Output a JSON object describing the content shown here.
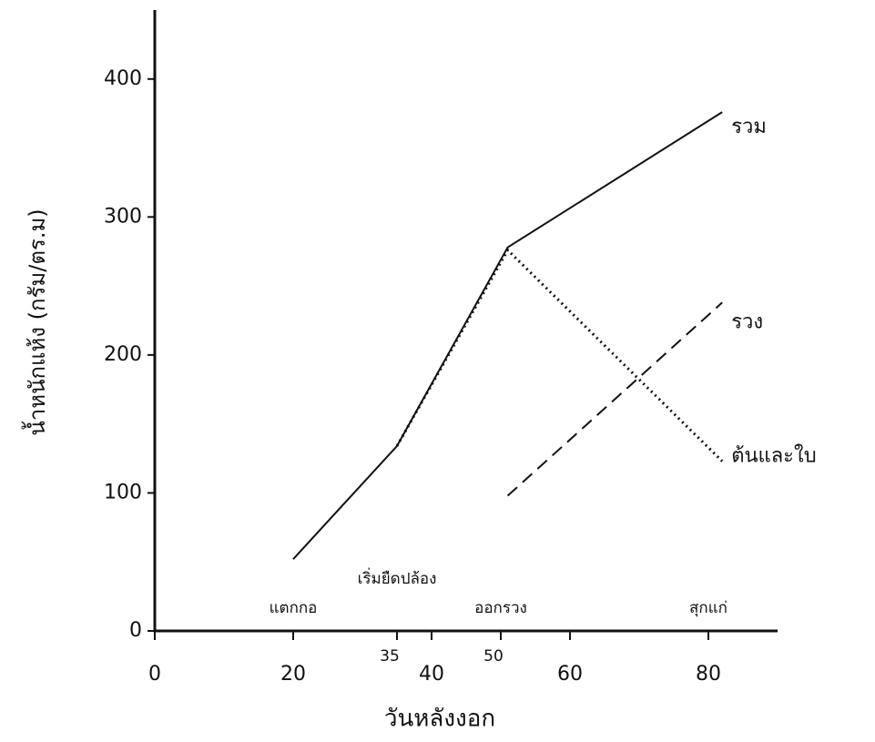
{
  "chart_data": {
    "type": "line",
    "x_label": "วันหลังงอก",
    "y_label": "น้ำหนักแห้ง (กรัม/ตร.ม)",
    "xlim": [
      0,
      90
    ],
    "ylim": [
      0,
      450
    ],
    "xticks": [
      0,
      20,
      40,
      60,
      80
    ],
    "xticks_minor": [
      35,
      50
    ],
    "yticks": [
      0,
      100,
      200,
      300,
      400
    ],
    "series": [
      {
        "name": "รวม",
        "color": "#111111",
        "dash": "solid",
        "x": [
          20,
          35,
          51,
          82
        ],
        "values": [
          52,
          134,
          278,
          376
        ]
      },
      {
        "name": "รวง",
        "color": "#111111",
        "dash": "dashed",
        "x": [
          51,
          82
        ],
        "values": [
          98,
          238
        ]
      },
      {
        "name": "ต้นและใบ",
        "color": "#111111",
        "dash": "dotted",
        "x": [
          35,
          51,
          82
        ],
        "values": [
          134,
          276,
          123
        ]
      }
    ],
    "annotations": [
      {
        "text": "แตกกอ",
        "x": 20
      },
      {
        "text": "เริ่มยืดปล้อง",
        "x": 35
      },
      {
        "text": "ออกรวง",
        "x": 50
      },
      {
        "text": "สุกแก่",
        "x": 80
      }
    ]
  }
}
